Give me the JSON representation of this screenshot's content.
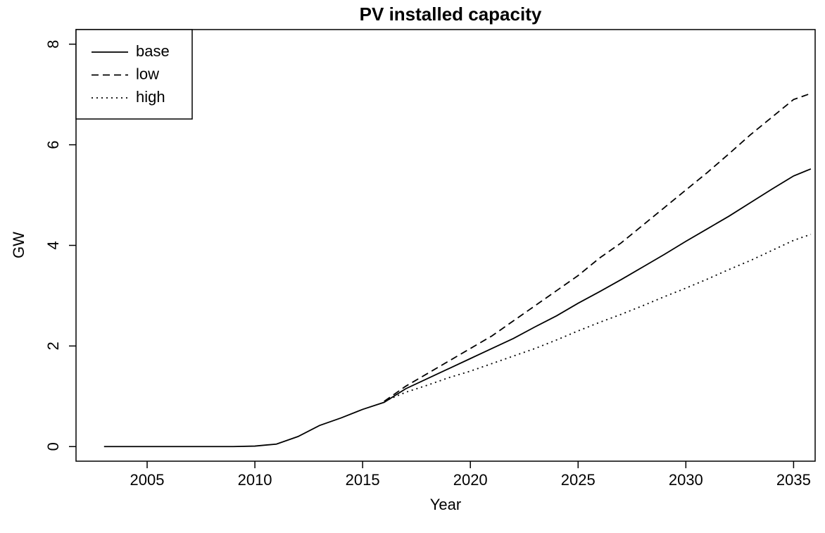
{
  "chart_data": {
    "type": "line",
    "title": "PV installed capacity",
    "x_label": "Year",
    "y_label": "GW",
    "x": [
      2003,
      2004,
      2005,
      2006,
      2007,
      2008,
      2009,
      2010,
      2011,
      2012,
      2013,
      2014,
      2015,
      2016,
      2017,
      2018,
      2019,
      2020,
      2021,
      2022,
      2023,
      2024,
      2025,
      2026,
      2027,
      2028,
      2029,
      2030,
      2031,
      2032,
      2033,
      2034,
      2035,
      2035.8
    ],
    "series": [
      {
        "name": "base",
        "color": "#000000",
        "dash": "solid",
        "values": [
          0,
          0,
          0,
          0,
          0,
          0,
          0,
          0.01,
          0.05,
          0.2,
          0.42,
          0.57,
          0.74,
          0.88,
          1.15,
          1.35,
          1.55,
          1.75,
          1.95,
          2.15,
          2.38,
          2.6,
          2.85,
          3.08,
          3.32,
          3.57,
          3.82,
          4.08,
          4.33,
          4.58,
          4.85,
          5.12,
          5.38,
          5.52
        ]
      },
      {
        "name": "low",
        "color": "#000000",
        "dash": "dashed",
        "values": [
          null,
          null,
          null,
          null,
          null,
          null,
          null,
          null,
          null,
          null,
          null,
          null,
          null,
          0.9,
          1.2,
          1.45,
          1.7,
          1.95,
          2.2,
          2.5,
          2.8,
          3.1,
          3.4,
          3.75,
          4.05,
          4.4,
          4.75,
          5.1,
          5.45,
          5.82,
          6.2,
          6.55,
          6.9,
          7.02
        ]
      },
      {
        "name": "high",
        "color": "#000000",
        "dash": "dotted",
        "values": [
          null,
          null,
          null,
          null,
          null,
          null,
          null,
          null,
          null,
          null,
          null,
          null,
          null,
          0.9,
          1.08,
          1.22,
          1.37,
          1.5,
          1.65,
          1.8,
          1.95,
          2.12,
          2.3,
          2.47,
          2.63,
          2.8,
          2.98,
          3.15,
          3.33,
          3.52,
          3.7,
          3.9,
          4.1,
          4.22
        ]
      }
    ],
    "xlim": [
      2001.7,
      2036.0
    ],
    "xticks": [
      2005,
      2010,
      2015,
      2020,
      2025,
      2030,
      2035
    ],
    "ylim": [
      -0.29,
      8.29
    ],
    "yticks": [
      0,
      2,
      4,
      6,
      8
    ],
    "legend": "top-left",
    "grid": false
  }
}
